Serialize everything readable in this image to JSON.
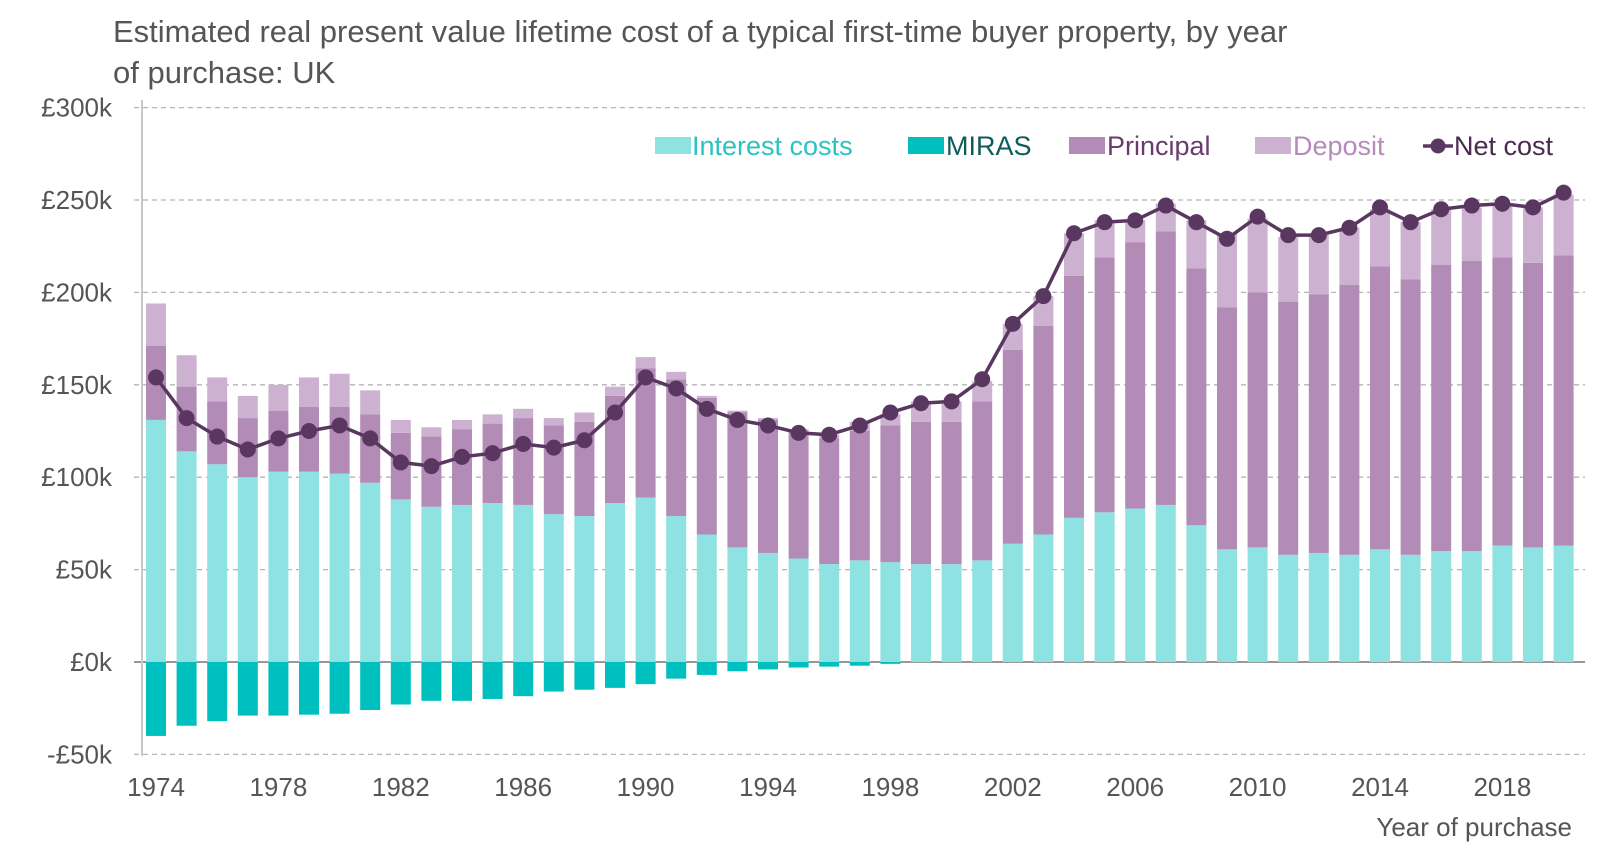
{
  "chart_data": {
    "type": "bar",
    "stacked": true,
    "title_lines": [
      "Estimated real present value lifetime cost of a typical first-time buyer property, by year",
      "of purchase: UK"
    ],
    "xlabel": "Year of purchase",
    "ylabel": "",
    "ylim": [
      -50,
      300
    ],
    "yunit": "£k",
    "yticks": [
      -50,
      0,
      50,
      100,
      150,
      200,
      250,
      300
    ],
    "ytick_labels": [
      "-£50k",
      "£0k",
      "£50k",
      "£100k",
      "£150k",
      "£200k",
      "£250k",
      "£300k"
    ],
    "xtick_labels": [
      "1974",
      "1978",
      "1982",
      "1986",
      "1990",
      "1994",
      "1998",
      "2002",
      "2006",
      "2010",
      "2014",
      "2018"
    ],
    "grid": true,
    "legend_position": "top-right",
    "x": [
      1974,
      1975,
      1976,
      1977,
      1978,
      1979,
      1980,
      1981,
      1982,
      1983,
      1984,
      1985,
      1986,
      1987,
      1988,
      1989,
      1990,
      1991,
      1992,
      1993,
      1994,
      1995,
      1996,
      1997,
      1998,
      1999,
      2000,
      2001,
      2002,
      2003,
      2004,
      2005,
      2006,
      2007,
      2008,
      2009,
      2010,
      2011,
      2012,
      2013,
      2014,
      2015,
      2016,
      2017,
      2018,
      2019,
      2020
    ],
    "series": [
      {
        "name": "Interest costs",
        "kind": "bar",
        "color": "#8fe2e2",
        "text_color": "#2cc2c2",
        "values": [
          131,
          114,
          107,
          100,
          103,
          103,
          102,
          97,
          88,
          84,
          85,
          86,
          85,
          80,
          79,
          86,
          89,
          79,
          69,
          62,
          59,
          56,
          53,
          55,
          54,
          53,
          53,
          55,
          64,
          69,
          78,
          81,
          83,
          85,
          74,
          61,
          62,
          58,
          59,
          58,
          61,
          58,
          60,
          60,
          63,
          62,
          63
        ]
      },
      {
        "name": "MIRAS",
        "kind": "bar",
        "color": "#00bfbf",
        "text_color": "#0b5c5c",
        "values": [
          -40,
          -34.5,
          -32,
          -29,
          -29,
          -28.5,
          -28,
          -26,
          -23,
          -21,
          -21,
          -20,
          -18.5,
          -16,
          -15,
          -14,
          -12,
          -9,
          -7,
          -5,
          -4,
          -3,
          -2.5,
          -2,
          -1,
          0,
          0,
          0,
          0,
          0,
          0,
          0,
          0,
          0,
          0,
          0,
          0,
          0,
          0,
          0,
          0,
          0,
          0,
          0,
          0,
          0,
          0
        ]
      },
      {
        "name": "Principal",
        "kind": "bar",
        "color": "#b28cb6",
        "text_color": "#6b3a6f",
        "values": [
          40,
          35,
          34,
          32,
          33,
          35,
          36,
          37,
          36,
          38,
          41,
          43,
          47,
          48,
          51,
          58,
          70,
          74,
          74,
          73,
          72,
          69,
          68,
          70,
          74,
          77,
          77,
          86,
          105,
          113,
          131,
          138,
          144,
          148,
          139,
          131,
          138,
          137,
          140,
          146,
          153,
          149,
          155,
          157,
          156,
          154,
          157
        ]
      },
      {
        "name": "Deposit",
        "kind": "bar",
        "color": "#cdb1d0",
        "text_color": "#b58cb9",
        "values": [
          23,
          17,
          13,
          12,
          14,
          16,
          18,
          13,
          7,
          5,
          5,
          5,
          5,
          4,
          5,
          5,
          6,
          4,
          1,
          1,
          1,
          1,
          2,
          5,
          6,
          11,
          11,
          11,
          14,
          16,
          23,
          20,
          12,
          15,
          26,
          40,
          40,
          35,
          32,
          31,
          31,
          31,
          30,
          29,
          29,
          30,
          33
        ]
      },
      {
        "name": "Net cost",
        "kind": "line",
        "color": "#5a3760",
        "text_color": "#4a2a50",
        "values": [
          154,
          132,
          122,
          115,
          121,
          125,
          128,
          121,
          108,
          106,
          111,
          113,
          118,
          116,
          120,
          135,
          154,
          148,
          137,
          131,
          128,
          124,
          123,
          128,
          135,
          140,
          141,
          153,
          183,
          198,
          232,
          238,
          239,
          247,
          238,
          229,
          241,
          231,
          231,
          235,
          246,
          238,
          245,
          247,
          248,
          246,
          254
        ]
      }
    ]
  }
}
